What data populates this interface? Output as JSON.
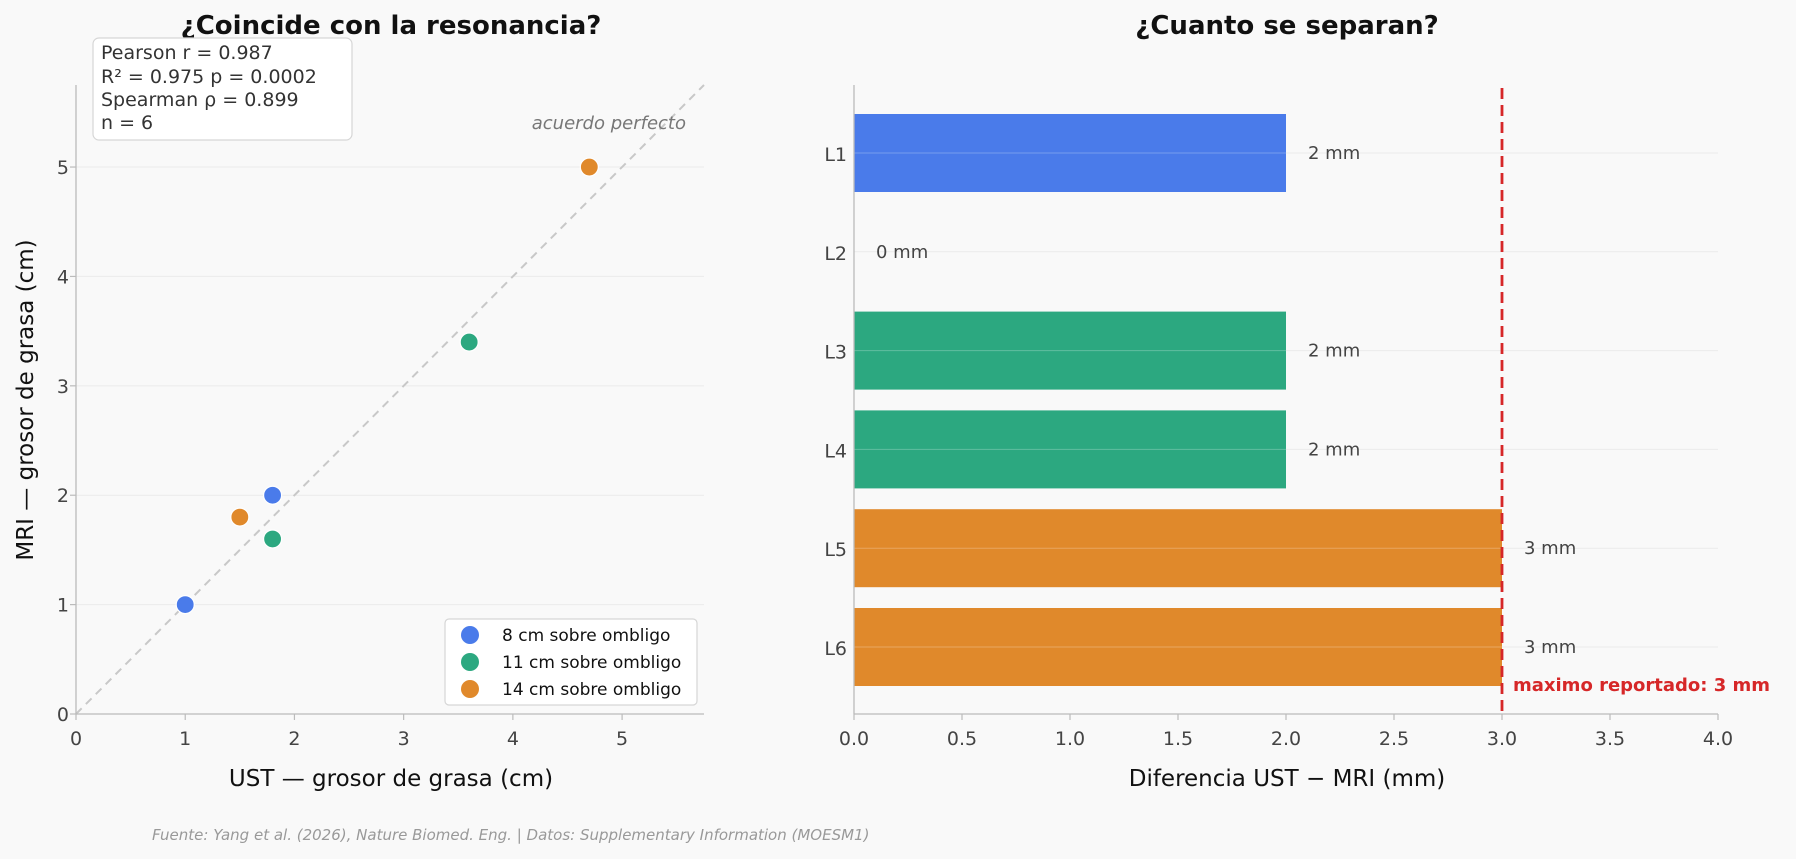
{
  "chart_data": [
    {
      "type": "scatter",
      "title": "¿Coincide con la resonancia?",
      "xlabel": "UST — grosor de grasa (cm)",
      "ylabel": "MRI — grosor de grasa (cm)",
      "xlim": [
        0,
        5.75
      ],
      "ylim": [
        0,
        5.75
      ],
      "xticks": [
        0,
        1,
        2,
        3,
        4,
        5
      ],
      "yticks": [
        0,
        1,
        2,
        3,
        4,
        5
      ],
      "xtick_labels": [
        "0",
        "1",
        "2",
        "3",
        "4",
        "5"
      ],
      "ytick_labels": [
        "0",
        "1",
        "2",
        "3",
        "4",
        "5"
      ],
      "series": [
        {
          "name": "8 cm sobre ombligo",
          "color": "#4a7bea",
          "points": [
            {
              "x": 1.0,
              "y": 1.0
            },
            {
              "x": 1.8,
              "y": 2.0
            }
          ]
        },
        {
          "name": "11 cm sobre ombligo",
          "color": "#2ca880",
          "points": [
            {
              "x": 1.8,
              "y": 1.6
            },
            {
              "x": 3.6,
              "y": 3.4
            }
          ]
        },
        {
          "name": "14 cm sobre ombligo",
          "color": "#e0892b",
          "points": [
            {
              "x": 1.5,
              "y": 1.8
            },
            {
              "x": 4.7,
              "y": 5.0
            }
          ]
        }
      ],
      "stats_lines": [
        "Pearson r = 0.987",
        "R² = 0.975  p = 0.0002",
        "Spearman ρ = 0.899",
        "n = 6"
      ],
      "identity_line_label": "acuerdo perfecto",
      "identity_line_color": "#c8c8c8",
      "legend_position": "lower-right"
    },
    {
      "type": "bar",
      "orientation": "horizontal",
      "title": "¿Cuanto se separan?",
      "xlabel": "Diferencia UST − MRI (mm)",
      "categories": [
        "L1",
        "L2",
        "L3",
        "L4",
        "L5",
        "L6"
      ],
      "values": [
        2,
        0,
        2,
        2,
        3,
        3
      ],
      "value_labels": [
        "2 mm",
        "0 mm",
        "2 mm",
        "2 mm",
        "3 mm",
        "3 mm"
      ],
      "colors": [
        "#4a7bea",
        "#4a7bea",
        "#2ca880",
        "#2ca880",
        "#e0892b",
        "#e0892b"
      ],
      "xlim": [
        0,
        4.0
      ],
      "xticks": [
        0,
        0.5,
        1.0,
        1.5,
        2.0,
        2.5,
        3.0,
        3.5,
        4.0
      ],
      "xtick_labels": [
        "0.0",
        "0.5",
        "1.0",
        "1.5",
        "2.0",
        "2.5",
        "3.0",
        "3.5",
        "4.0"
      ],
      "reference_line": {
        "value": 3.0,
        "label": "maximo reportado: 3 mm",
        "color": "#d62728"
      }
    }
  ],
  "source": "Fuente: Yang et al. (2026), Nature Biomed. Eng. | Datos: Supplementary Information (MOESM1)"
}
